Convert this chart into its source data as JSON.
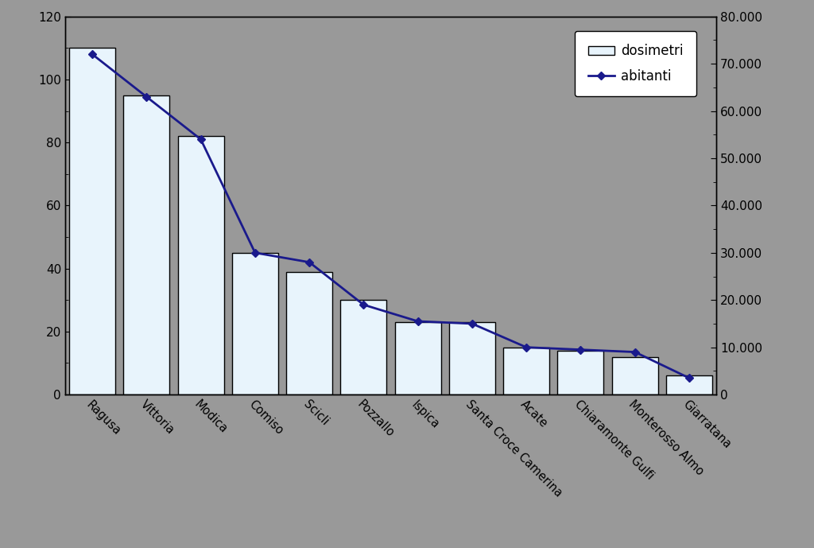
{
  "categories": [
    "Ragusa",
    "Vittoria",
    "Modica",
    "Comiso",
    "Scicli",
    "Pozzallo",
    "Ispica",
    "Santa Croce Camerina",
    "Acate",
    "Chiaramonte Gulfi",
    "Monterosso Almo",
    "Giarratana"
  ],
  "dosimetri": [
    110,
    95,
    82,
    45,
    39,
    30,
    23,
    23,
    15,
    14,
    12,
    6
  ],
  "abitanti": [
    72000,
    63000,
    54000,
    30000,
    28000,
    19000,
    15500,
    15000,
    10000,
    9500,
    9000,
    3500
  ],
  "bar_facecolor": "#e8f4fc",
  "bar_edgecolor": "#000000",
  "line_color": "#1a1a8c",
  "line_marker": "D",
  "marker_size": 5,
  "background_color": "#999999",
  "left_ylim": [
    0,
    120
  ],
  "right_ylim": [
    0,
    80000
  ],
  "left_yticks": [
    0,
    20,
    40,
    60,
    80,
    100,
    120
  ],
  "right_yticks": [
    0,
    10000,
    20000,
    30000,
    40000,
    50000,
    60000,
    70000,
    80000
  ],
  "legend_dosimetri": "dosimetri",
  "legend_abitanti": "abitanti",
  "bar_width": 0.85,
  "figsize": [
    10.24,
    6.89
  ],
  "dpi": 100
}
